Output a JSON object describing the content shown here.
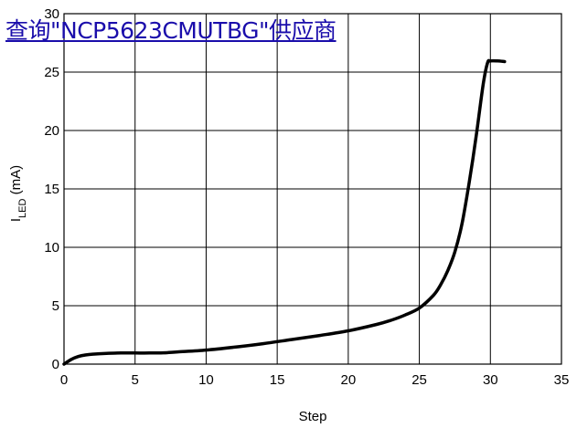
{
  "overlay": {
    "link_text": "查询\"NCP5623CMUTBG\"供应商"
  },
  "chart_data": {
    "type": "line",
    "xlabel": "Step",
    "ylabel_main": "I",
    "ylabel_sub": "LED",
    "ylabel_unit": " (mA)",
    "xlim": [
      0,
      35
    ],
    "ylim": [
      0,
      30
    ],
    "xticks": [
      0,
      5,
      10,
      15,
      20,
      25,
      30,
      35
    ],
    "yticks": [
      0,
      5,
      10,
      15,
      20,
      25,
      30
    ],
    "grid": true,
    "series": [
      {
        "color": "#000000",
        "x": [
          0,
          0.5,
          1,
          1.5,
          2,
          3,
          4,
          5,
          6,
          7,
          8,
          10,
          12,
          14,
          16,
          18,
          20,
          22,
          23,
          24,
          25,
          26,
          26.5,
          27,
          27.5,
          28,
          28.5,
          29,
          29.5,
          29.8,
          30,
          30.5,
          31
        ],
        "y": [
          0,
          0.4,
          0.65,
          0.78,
          0.85,
          0.92,
          0.95,
          0.95,
          0.95,
          0.97,
          1.05,
          1.2,
          1.45,
          1.75,
          2.1,
          2.45,
          2.85,
          3.4,
          3.75,
          4.2,
          4.8,
          5.9,
          6.8,
          8.0,
          9.6,
          12.0,
          15.5,
          19.5,
          24.0,
          25.8,
          25.95,
          25.95,
          25.9
        ]
      }
    ]
  }
}
